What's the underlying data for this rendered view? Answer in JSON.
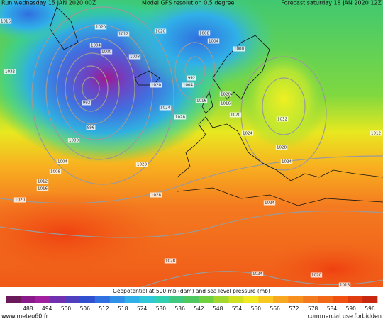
{
  "header": {
    "run": "Run wednesday 15 JAN 2020 00Z",
    "model": "Model GFS resolution 0.5 degree",
    "forecast": "Forecast saturday 18 JAN 2020 12Z"
  },
  "map": {
    "isobar_labels": [
      "1016",
      "1032",
      "1020",
      "1012",
      "1004",
      "1000",
      "1008",
      "1020",
      "1008",
      "1004",
      "1000",
      "1020",
      "1024",
      "1028",
      "992",
      "1004",
      "1016",
      "1020",
      "1016",
      "1020",
      "1024",
      "1032",
      "1028",
      "1024",
      "992",
      "996",
      "1000",
      "1004",
      "1008",
      "1012",
      "1016",
      "1020",
      "1028",
      "1028",
      "1024",
      "1028",
      "1024",
      "1020",
      "1016",
      "1012"
    ]
  },
  "legend": {
    "title": "Geopotential at 500 mb (dam) and sea level pressure (mb)",
    "ticks": [
      488,
      494,
      500,
      506,
      512,
      518,
      524,
      530,
      536,
      542,
      548,
      554,
      560,
      566,
      572,
      578,
      584,
      590,
      596
    ]
  },
  "footer": {
    "site": "www.meteo60.fr",
    "notice": "commercial use forbidden"
  }
}
